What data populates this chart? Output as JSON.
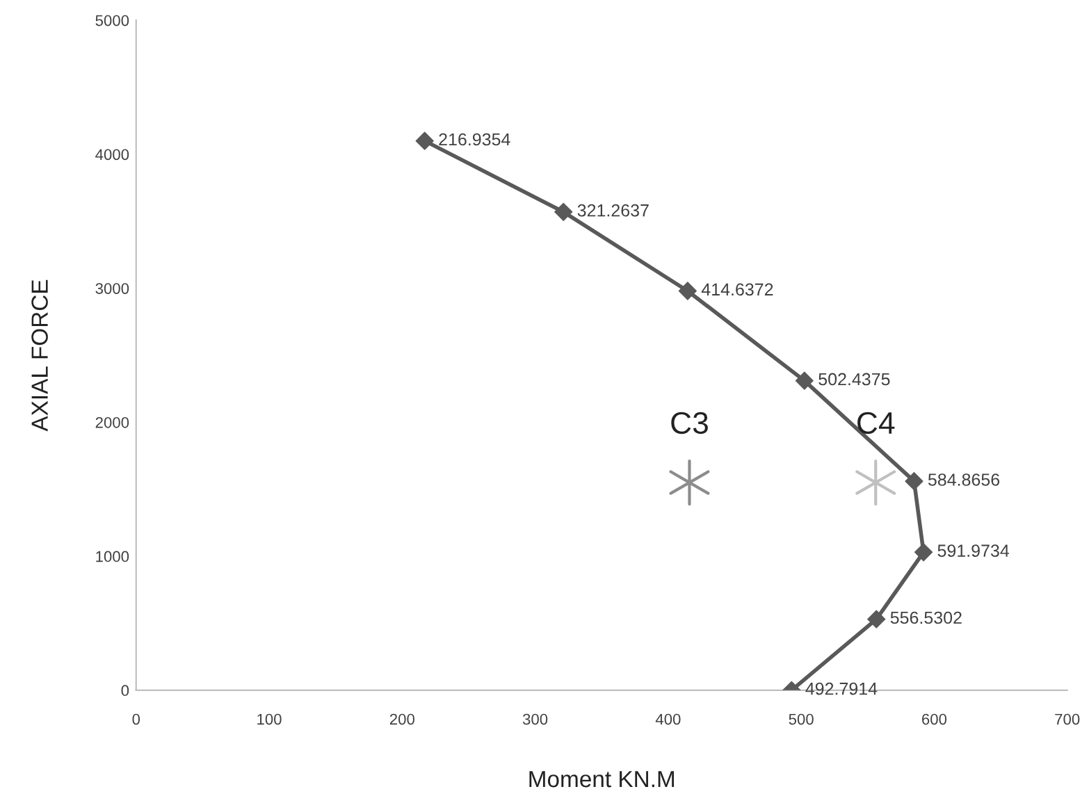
{
  "chart_data": {
    "type": "line",
    "xlabel": "Moment KN.M",
    "ylabel": "AXIAL FORCE",
    "xlim": [
      0,
      700
    ],
    "xticks": [
      0,
      100,
      200,
      300,
      400,
      500,
      600,
      700
    ],
    "ylim": [
      0,
      5000
    ],
    "yticks": [
      0,
      1000,
      2000,
      3000,
      4000,
      5000
    ],
    "grid": false,
    "legend": false,
    "series": [
      {
        "color": "#595959",
        "marker": "diamond",
        "line_style": "solid",
        "x": [
          216.9354,
          321.2637,
          414.6372,
          502.4375,
          584.8656,
          591.9734,
          556.5302,
          492.7914
        ],
        "values": [
          4100,
          3570,
          2980,
          2310,
          1560,
          1030,
          530,
          0
        ]
      },
      {
        "type": "scatter",
        "name": "C3",
        "color": "#8c8c8c",
        "marker": "cross",
        "x": [
          416
        ],
        "values": [
          1550
        ]
      },
      {
        "type": "scatter",
        "name": "C4",
        "color": "#c0c0c0",
        "marker": "cross",
        "x": [
          556
        ],
        "values": [
          1550
        ]
      }
    ],
    "annotations": [
      {
        "text": "216.9354",
        "x": 216.9354,
        "y": 4100
      },
      {
        "text": "321.2637",
        "x": 321.2637,
        "y": 3570
      },
      {
        "text": "414.6372",
        "x": 414.6372,
        "y": 2980
      },
      {
        "text": "502.4375",
        "x": 502.4375,
        "y": 2310
      },
      {
        "text": "584.8656",
        "x": 584.8656,
        "y": 1560
      },
      {
        "text": "591.9734",
        "x": 591.9734,
        "y": 1030
      },
      {
        "text": "556.5302",
        "x": 556.5302,
        "y": 530
      },
      {
        "text": "492.7914",
        "x": 492.7914,
        "y": 0
      }
    ]
  }
}
